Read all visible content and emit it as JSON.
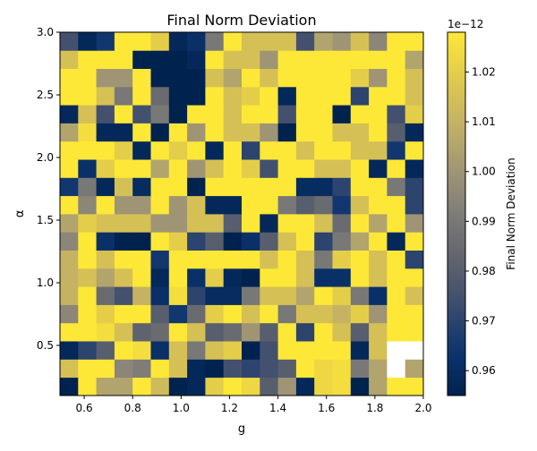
{
  "chart_data": {
    "type": "heatmap",
    "title": "Final Norm Deviation",
    "xlabel": "g",
    "ylabel": "α",
    "xlim": [
      0.5,
      2.0
    ],
    "ylim": [
      0.1,
      3.0
    ],
    "x_ticks": [
      "0.6",
      "0.8",
      "1.0",
      "1.2",
      "1.4",
      "1.6",
      "1.8",
      "2.0"
    ],
    "y_ticks": [
      "0.5",
      "1.0",
      "1.5",
      "2.0",
      "2.5",
      "3.0"
    ],
    "x_tick_values": [
      0.6,
      0.8,
      1.0,
      1.2,
      1.4,
      1.6,
      1.8,
      2.0
    ],
    "y_tick_values": [
      0.5,
      1.0,
      1.5,
      2.0,
      2.5,
      3.0
    ],
    "n_cols": 20,
    "n_rows": 20,
    "colormap": "cividis",
    "vmin": 0.955,
    "vmax": 1.028,
    "colorbar": {
      "label": "Final Norm Deviation",
      "exponent": "1e−12",
      "ticks": [
        "0.96",
        "0.97",
        "0.98",
        "0.99",
        "1.00",
        "1.01",
        "1.02"
      ],
      "tick_values": [
        0.96,
        0.97,
        0.98,
        0.99,
        1.0,
        1.01,
        1.02
      ]
    },
    "values_note": "rows from alpha=0.1 (bottom) to alpha=3.0 (top); values in units of 1e-12; null = masked cell",
    "values": [
      [
        0.955,
        1.028,
        1.005,
        1.005,
        1.028,
        1.013,
        0.955,
        0.958,
        1.02,
        1.028,
        1.023,
        0.98,
        1.0,
        0.958,
        1.023,
        1.025,
        0.955,
        1.005,
        1.028,
        1.028
      ],
      [
        1.015,
        1.028,
        1.028,
        0.995,
        0.992,
        1.028,
        1.015,
        0.958,
        0.955,
        0.975,
        0.97,
        0.975,
        0.98,
        1.028,
        1.023,
        1.025,
        0.99,
        1.005,
        null,
        1.005
      ],
      [
        0.958,
        0.97,
        0.98,
        1.028,
        1.025,
        0.962,
        1.015,
        0.99,
        1.015,
        1.02,
        0.955,
        0.975,
        1.028,
        1.028,
        1.028,
        1.028,
        0.958,
        1.015,
        null,
        null
      ],
      [
        1.028,
        1.028,
        1.025,
        1.015,
        0.982,
        0.985,
        1.028,
        1.015,
        0.98,
        0.985,
        1.0,
        0.98,
        1.028,
        0.97,
        1.028,
        1.015,
        0.98,
        1.015,
        1.028,
        1.028
      ],
      [
        0.995,
        1.028,
        1.02,
        1.028,
        1.028,
        0.98,
        0.965,
        0.985,
        1.02,
        1.028,
        1.015,
        1.028,
        0.99,
        1.015,
        1.015,
        1.01,
        1.02,
        1.0,
        1.028,
        1.028
      ],
      [
        1.01,
        1.028,
        0.985,
        0.975,
        1.01,
        0.962,
        1.025,
        0.97,
        0.96,
        0.96,
        0.99,
        1.015,
        1.015,
        1.005,
        1.028,
        1.02,
        0.99,
        0.962,
        1.028,
        1.015
      ],
      [
        1.01,
        1.015,
        1.005,
        1.015,
        1.028,
        0.958,
        1.028,
        0.962,
        1.02,
        0.958,
        0.955,
        1.028,
        1.028,
        1.015,
        0.962,
        0.962,
        1.028,
        1.015,
        1.028,
        1.028
      ],
      [
        1.01,
        1.028,
        1.015,
        1.028,
        1.028,
        0.965,
        1.028,
        1.028,
        1.028,
        1.028,
        1.028,
        1.015,
        1.028,
        1.015,
        0.99,
        1.02,
        1.028,
        1.015,
        1.028,
        0.97
      ],
      [
        0.995,
        1.028,
        0.962,
        0.955,
        0.955,
        1.028,
        1.02,
        0.97,
        0.98,
        0.955,
        0.962,
        0.98,
        1.015,
        1.028,
        0.97,
        0.99,
        1.005,
        1.028,
        0.958,
        1.028
      ],
      [
        1.005,
        1.02,
        1.015,
        1.015,
        1.015,
        1.0,
        1.0,
        1.015,
        1.015,
        0.98,
        1.028,
        0.958,
        1.028,
        1.028,
        1.015,
        0.985,
        1.028,
        1.005,
        1.028,
        1.0
      ],
      [
        1.028,
        0.995,
        1.028,
        1.0,
        1.0,
        1.028,
        1.0,
        1.015,
        0.958,
        0.958,
        1.028,
        1.028,
        0.99,
        0.98,
        0.985,
        0.965,
        1.015,
        1.028,
        1.028,
        0.97
      ],
      [
        0.965,
        0.99,
        0.958,
        1.015,
        0.96,
        1.028,
        1.028,
        0.955,
        1.028,
        1.028,
        1.028,
        1.028,
        1.028,
        0.96,
        0.96,
        0.97,
        1.028,
        1.028,
        0.99,
        0.97
      ],
      [
        1.028,
        0.962,
        1.02,
        1.028,
        1.028,
        1.005,
        1.028,
        1.0,
        1.015,
        1.028,
        1.02,
        0.975,
        1.028,
        1.028,
        1.015,
        1.015,
        1.028,
        0.958,
        1.028,
        0.958
      ],
      [
        1.028,
        1.028,
        1.028,
        1.02,
        0.958,
        1.028,
        1.02,
        1.028,
        0.958,
        1.028,
        0.97,
        1.028,
        1.028,
        1.015,
        1.028,
        1.028,
        1.015,
        1.015,
        0.965,
        1.028
      ],
      [
        1.005,
        1.025,
        0.958,
        0.958,
        1.028,
        0.955,
        1.028,
        1.0,
        1.028,
        1.015,
        1.015,
        1.0,
        0.955,
        1.028,
        1.028,
        1.015,
        1.015,
        1.028,
        0.98,
        0.958
      ],
      [
        0.958,
        1.015,
        0.975,
        1.028,
        0.975,
        0.99,
        0.955,
        1.028,
        1.028,
        1.015,
        1.028,
        1.028,
        0.975,
        1.028,
        1.028,
        0.955,
        1.028,
        1.028,
        0.975,
        1.02
      ],
      [
        1.028,
        1.028,
        1.015,
        0.99,
        1.028,
        0.985,
        0.955,
        0.955,
        1.028,
        1.015,
        1.02,
        1.028,
        0.958,
        1.028,
        1.028,
        1.028,
        0.97,
        1.028,
        1.028,
        1.015
      ],
      [
        1.028,
        1.028,
        1.0,
        1.0,
        1.028,
        0.955,
        0.955,
        0.955,
        1.015,
        1.005,
        1.028,
        1.015,
        1.028,
        1.028,
        1.028,
        1.028,
        1.02,
        1.0,
        1.028,
        1.015
      ],
      [
        1.015,
        1.028,
        1.028,
        1.028,
        0.955,
        0.955,
        0.955,
        0.958,
        1.028,
        1.015,
        1.015,
        1.0,
        1.028,
        1.028,
        1.028,
        1.028,
        1.028,
        1.028,
        1.028,
        1.005
      ],
      [
        0.975,
        0.958,
        0.965,
        1.028,
        1.028,
        1.02,
        0.958,
        0.962,
        0.99,
        1.028,
        1.015,
        1.015,
        1.015,
        0.975,
        1.005,
        1.0,
        1.015,
        0.995,
        1.028,
        1.028
      ]
    ]
  }
}
